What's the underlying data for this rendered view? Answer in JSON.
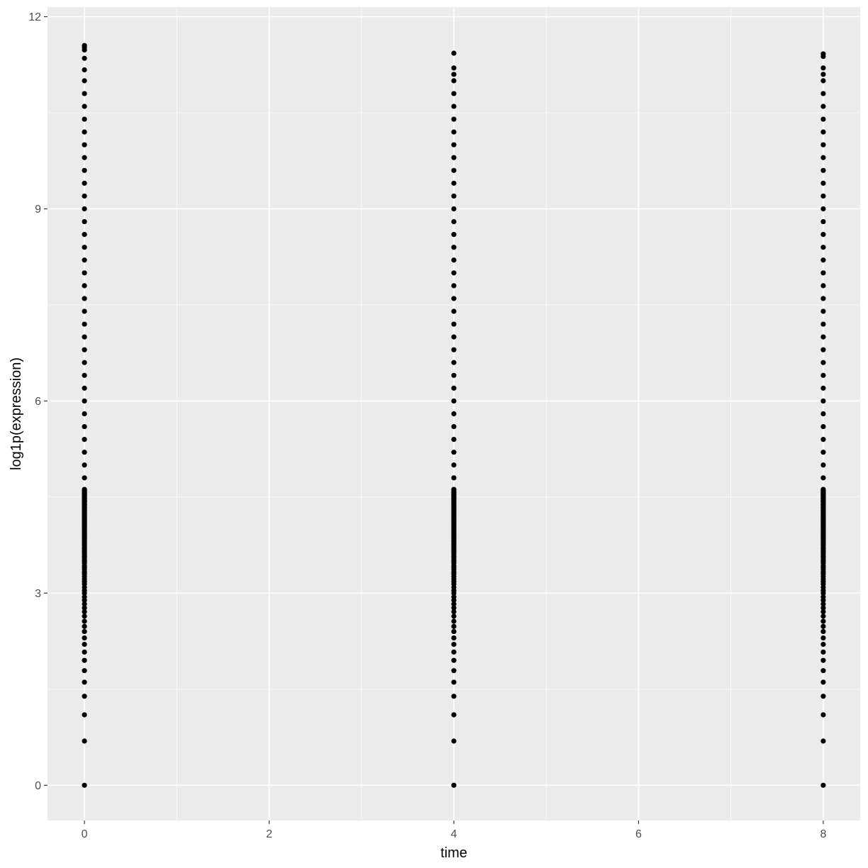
{
  "chart_data": {
    "type": "scatter",
    "title": "",
    "xlabel": "time",
    "ylabel": "log1p(expression)",
    "xlim": [
      -0.4,
      8.4
    ],
    "ylim": [
      -0.55,
      12.15
    ],
    "x_ticks": [
      0,
      2,
      4,
      6,
      8
    ],
    "y_ticks": [
      0,
      3,
      6,
      9,
      12
    ],
    "x_tick_labels": [
      "0",
      "2",
      "4",
      "6",
      "8"
    ],
    "y_tick_labels": [
      "0",
      "3",
      "6",
      "9",
      "12"
    ],
    "grid": true,
    "panel_background": "#ebebeb",
    "grid_color": "#ffffff",
    "point_color": "#000000",
    "series": [
      {
        "x": 0,
        "y": [
          0,
          0.69,
          1.1,
          1.39,
          1.61,
          1.79,
          1.95,
          2.08,
          2.2,
          2.3,
          2.4,
          2.48,
          2.56,
          2.64,
          2.71,
          2.77,
          2.83,
          2.89,
          2.94,
          3.0,
          3.04,
          3.09,
          3.14,
          3.18,
          3.22,
          3.26,
          3.3,
          3.33,
          3.37,
          3.4,
          3.43,
          3.47,
          3.5,
          3.53,
          3.56,
          3.58,
          3.61,
          3.64,
          3.66,
          3.69,
          3.71,
          3.74,
          3.76,
          3.78,
          3.81,
          3.83,
          3.85,
          3.87,
          3.89,
          3.91,
          3.93,
          3.95,
          3.97,
          3.99,
          4.01,
          4.03,
          4.04,
          4.06,
          4.08,
          4.09,
          4.11,
          4.13,
          4.14,
          4.16,
          4.17,
          4.19,
          4.2,
          4.22,
          4.23,
          4.25,
          4.26,
          4.28,
          4.29,
          4.3,
          4.32,
          4.33,
          4.34,
          4.36,
          4.37,
          4.38,
          4.39,
          4.41,
          4.42,
          4.43,
          4.44,
          4.45,
          4.47,
          4.48,
          4.49,
          4.5,
          4.51,
          4.52,
          4.53,
          4.54,
          4.55,
          4.56,
          4.57,
          4.58,
          4.6,
          4.61,
          4.62,
          4.8,
          5.0,
          5.2,
          5.4,
          5.6,
          5.8,
          6.0,
          6.2,
          6.4,
          6.6,
          6.8,
          7.0,
          7.2,
          7.4,
          7.6,
          7.8,
          8.0,
          8.2,
          8.4,
          8.6,
          8.8,
          9.0,
          9.2,
          9.4,
          9.6,
          9.8,
          10.0,
          10.2,
          10.4,
          10.6,
          10.8,
          11.0,
          11.17,
          11.35,
          11.48,
          11.52,
          11.55
        ]
      },
      {
        "x": 4,
        "y": [
          0,
          0.69,
          1.1,
          1.39,
          1.61,
          1.79,
          1.95,
          2.08,
          2.2,
          2.3,
          2.4,
          2.48,
          2.56,
          2.64,
          2.71,
          2.77,
          2.83,
          2.89,
          2.94,
          3.0,
          3.04,
          3.09,
          3.14,
          3.18,
          3.22,
          3.26,
          3.3,
          3.33,
          3.37,
          3.4,
          3.43,
          3.47,
          3.5,
          3.53,
          3.56,
          3.58,
          3.61,
          3.64,
          3.66,
          3.69,
          3.71,
          3.74,
          3.76,
          3.78,
          3.81,
          3.83,
          3.85,
          3.87,
          3.89,
          3.91,
          3.93,
          3.95,
          3.97,
          3.99,
          4.01,
          4.03,
          4.04,
          4.06,
          4.08,
          4.09,
          4.11,
          4.13,
          4.14,
          4.16,
          4.17,
          4.19,
          4.2,
          4.22,
          4.23,
          4.25,
          4.26,
          4.28,
          4.29,
          4.3,
          4.32,
          4.33,
          4.34,
          4.36,
          4.37,
          4.38,
          4.39,
          4.41,
          4.42,
          4.43,
          4.44,
          4.45,
          4.47,
          4.48,
          4.49,
          4.5,
          4.51,
          4.52,
          4.53,
          4.54,
          4.55,
          4.56,
          4.57,
          4.58,
          4.6,
          4.61,
          4.62,
          4.8,
          5.0,
          5.2,
          5.4,
          5.6,
          5.8,
          6.0,
          6.2,
          6.4,
          6.6,
          6.8,
          7.0,
          7.2,
          7.4,
          7.6,
          7.8,
          8.0,
          8.2,
          8.4,
          8.6,
          8.8,
          9.0,
          9.2,
          9.4,
          9.6,
          9.8,
          10.0,
          10.2,
          10.4,
          10.6,
          10.8,
          11.0,
          11.1,
          11.2,
          11.43
        ]
      },
      {
        "x": 8,
        "y": [
          0,
          0.69,
          1.1,
          1.39,
          1.61,
          1.79,
          1.95,
          2.08,
          2.2,
          2.3,
          2.4,
          2.48,
          2.56,
          2.64,
          2.71,
          2.77,
          2.83,
          2.89,
          2.94,
          3.0,
          3.04,
          3.09,
          3.14,
          3.18,
          3.22,
          3.26,
          3.3,
          3.33,
          3.37,
          3.4,
          3.43,
          3.47,
          3.5,
          3.53,
          3.56,
          3.58,
          3.61,
          3.64,
          3.66,
          3.69,
          3.71,
          3.74,
          3.76,
          3.78,
          3.81,
          3.83,
          3.85,
          3.87,
          3.89,
          3.91,
          3.93,
          3.95,
          3.97,
          3.99,
          4.01,
          4.03,
          4.04,
          4.06,
          4.08,
          4.09,
          4.11,
          4.13,
          4.14,
          4.16,
          4.17,
          4.19,
          4.2,
          4.22,
          4.23,
          4.25,
          4.26,
          4.28,
          4.29,
          4.3,
          4.32,
          4.33,
          4.34,
          4.36,
          4.37,
          4.38,
          4.39,
          4.41,
          4.42,
          4.43,
          4.44,
          4.45,
          4.47,
          4.48,
          4.49,
          4.5,
          4.51,
          4.52,
          4.53,
          4.54,
          4.55,
          4.56,
          4.57,
          4.58,
          4.6,
          4.61,
          4.62,
          4.8,
          5.0,
          5.2,
          5.4,
          5.6,
          5.8,
          6.0,
          6.2,
          6.4,
          6.6,
          6.8,
          7.0,
          7.2,
          7.4,
          7.6,
          7.8,
          8.0,
          8.2,
          8.4,
          8.6,
          8.8,
          9.0,
          9.2,
          9.4,
          9.6,
          9.8,
          10.0,
          10.2,
          10.4,
          10.6,
          10.8,
          11.0,
          11.1,
          11.2,
          11.38,
          11.42
        ]
      }
    ]
  }
}
